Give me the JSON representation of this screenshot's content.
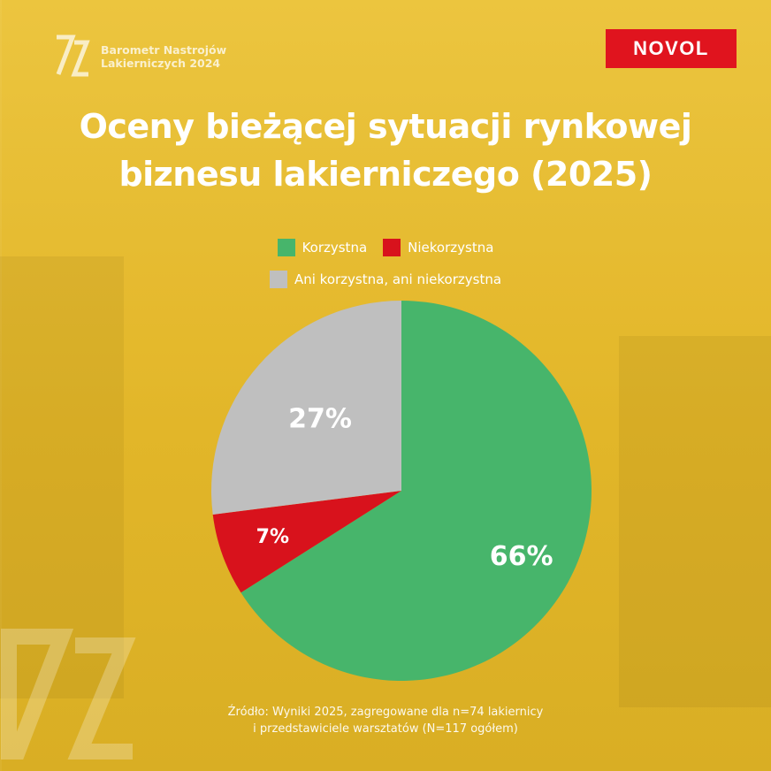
{
  "brand": {
    "line1": "Barometr Nastrojów",
    "line2": "Lakierniczych 2024"
  },
  "logo_text": "NOVOL",
  "title": {
    "line1": "Oceny bieżącej sytuacji rynkowej",
    "line2": "biznesu lakierniczego (2025)"
  },
  "source": {
    "line1": "Źródło: Wyniki 2025, zagregowane dla n=74 lakiernicy",
    "line2": "i przedstawiciele warsztatów (N=117 ogółem)"
  },
  "chart_data": {
    "type": "pie",
    "title": "Oceny bieżącej sytuacji rynkowej biznesu lakierniczego (2025)",
    "legend_position": "top",
    "slices": [
      {
        "label": "Korzystna",
        "value": 66,
        "display": "66%",
        "color": "#47b56b"
      },
      {
        "label": "Niekorzystna",
        "value": 7,
        "display": "7%",
        "color": "#d8121c"
      },
      {
        "label": "Ani korzystna, ani niekorzystna",
        "value": 27,
        "display": "27%",
        "color": "#bfbfbf"
      }
    ]
  }
}
